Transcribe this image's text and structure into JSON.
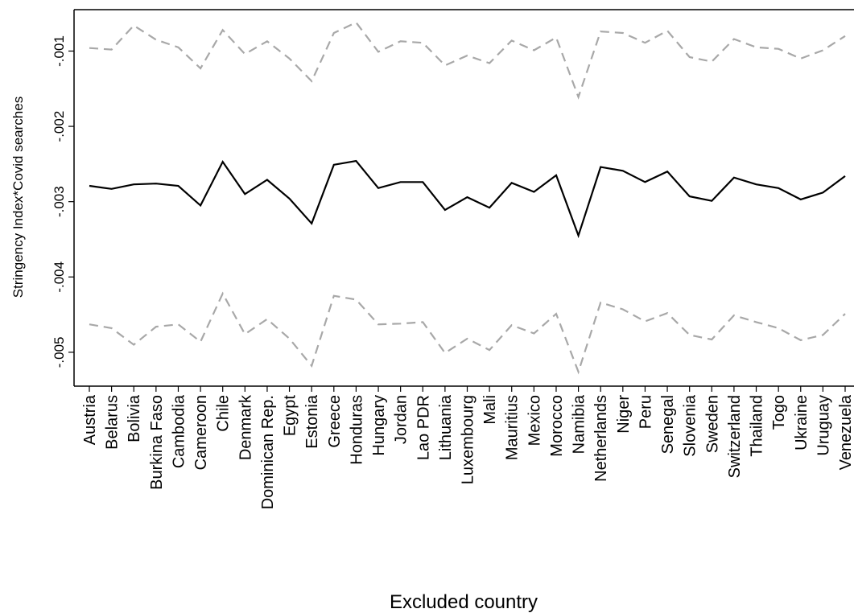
{
  "chart_data": {
    "type": "line",
    "xlabel": "Excluded country",
    "ylabel": "Stringency Index*Covid searches",
    "categories": [
      "Austria",
      "Belarus",
      "Bolivia",
      "Burkina Faso",
      "Cambodia",
      "Cameroon",
      "Chile",
      "Denmark",
      "Dominican Rep.",
      "Egypt",
      "Estonia",
      "Greece",
      "Honduras",
      "Hungary",
      "Jordan",
      "Lao PDR",
      "Lithuania",
      "Luxembourg",
      "Mali",
      "Mauritius",
      "Mexico",
      "Morocco",
      "Namibia",
      "Netherlands",
      "Niger",
      "Peru",
      "Senegal",
      "Slovenia",
      "Sweden",
      "Switzerland",
      "Thailand",
      "Togo",
      "Ukraine",
      "Uruguay",
      "Venezuela"
    ],
    "y_ticks": [
      -0.005,
      -0.004,
      -0.003,
      -0.002,
      -0.001
    ],
    "y_tick_labels": [
      "-.005",
      "-.004",
      "-.003",
      "-.002",
      "-.001"
    ],
    "ylim": [
      -0.00545,
      -0.00045
    ],
    "series": [
      {
        "role": "estimate",
        "style": "solid",
        "color": "#000000",
        "values": [
          -0.00279,
          -0.00283,
          -0.00277,
          -0.00276,
          -0.00279,
          -0.00305,
          -0.00247,
          -0.0029,
          -0.00271,
          -0.00296,
          -0.00329,
          -0.00251,
          -0.00246,
          -0.00282,
          -0.00274,
          -0.00274,
          -0.00311,
          -0.00294,
          -0.00308,
          -0.00275,
          -0.00287,
          -0.00265,
          -0.00345,
          -0.00254,
          -0.00259,
          -0.00274,
          -0.0026,
          -0.00293,
          -0.00299,
          -0.00268,
          -0.00277,
          -0.00282,
          -0.00297,
          -0.00288,
          -0.00266
        ]
      },
      {
        "role": "upper bound",
        "style": "dashed",
        "color": "#a8a8a8",
        "values": [
          -0.00096,
          -0.00098,
          -0.00066,
          -0.00085,
          -0.00095,
          -0.00123,
          -0.00072,
          -0.00104,
          -0.00087,
          -0.0011,
          -0.0014,
          -0.00076,
          -0.00062,
          -0.00101,
          -0.00087,
          -0.00089,
          -0.00119,
          -0.00106,
          -0.00116,
          -0.00086,
          -0.00099,
          -0.00082,
          -0.00161,
          -0.00074,
          -0.00076,
          -0.00089,
          -0.00073,
          -0.00108,
          -0.00114,
          -0.00084,
          -0.00095,
          -0.00097,
          -0.0011,
          -0.00099,
          -0.0008
        ]
      },
      {
        "role": "lower bound",
        "style": "dashed",
        "color": "#a8a8a8",
        "values": [
          -0.00463,
          -0.00468,
          -0.0049,
          -0.00466,
          -0.00463,
          -0.00486,
          -0.00422,
          -0.00476,
          -0.00456,
          -0.00482,
          -0.00518,
          -0.00425,
          -0.0043,
          -0.00463,
          -0.00462,
          -0.0046,
          -0.00501,
          -0.00482,
          -0.00497,
          -0.00464,
          -0.00475,
          -0.00449,
          -0.00526,
          -0.00434,
          -0.00443,
          -0.00459,
          -0.00448,
          -0.00477,
          -0.00483,
          -0.00451,
          -0.0046,
          -0.00468,
          -0.00484,
          -0.00477,
          -0.00449
        ]
      }
    ],
    "grid": false,
    "legend": "none"
  }
}
